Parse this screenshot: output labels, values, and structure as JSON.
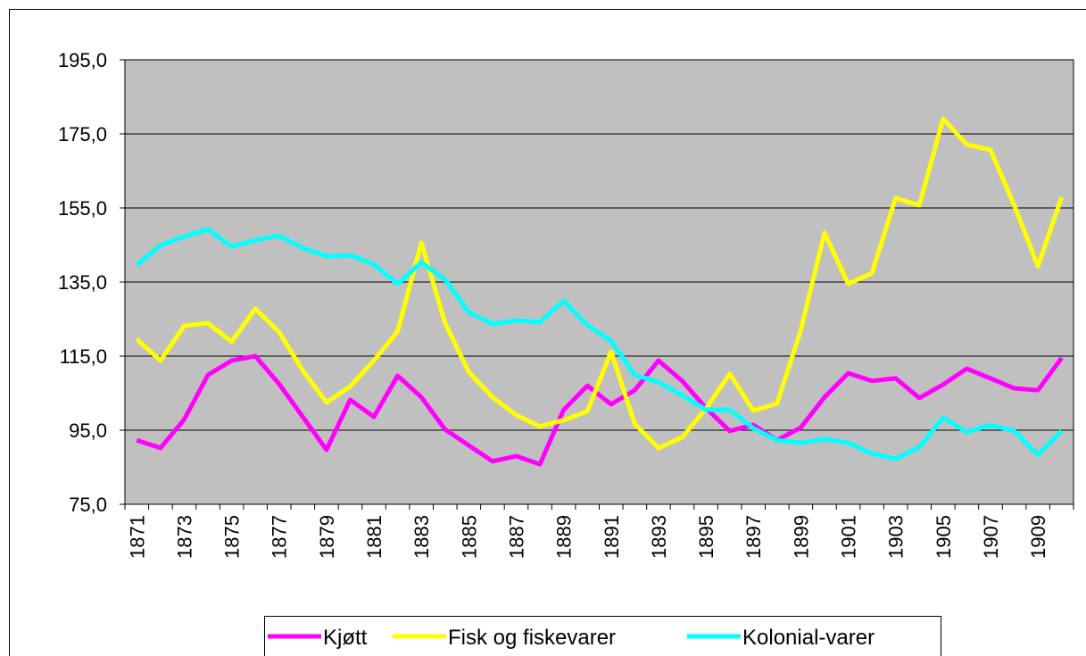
{
  "chart_data": {
    "type": "line",
    "categories": [
      1871,
      null,
      1873,
      null,
      1875,
      null,
      1877,
      null,
      1879,
      null,
      1881,
      null,
      1883,
      null,
      1885,
      null,
      1887,
      null,
      1889,
      null,
      1891,
      null,
      1893,
      null,
      1895,
      null,
      1897,
      null,
      1899,
      null,
      1901,
      null,
      1903,
      null,
      1905,
      null,
      1907,
      null,
      1909,
      null
    ],
    "series": [
      {
        "name": "Kjøtt",
        "color": "#ff00ff",
        "values": [
          92.3,
          90.2,
          97.9,
          109.9,
          113.8,
          115.0,
          107.5,
          98.6,
          89.7,
          103.2,
          98.6,
          109.7,
          103.9,
          95.2,
          90.9,
          86.6,
          88.0,
          85.8,
          100.5,
          107.0,
          102.0,
          105.8,
          113.8,
          108.3,
          101.0,
          94.8,
          96.4,
          92.3,
          95.7,
          103.9,
          110.4,
          108.3,
          109.0,
          103.7,
          107.3,
          111.6,
          109.0,
          106.3,
          105.8,
          114.5
        ]
      },
      {
        "name": "Fisk og fiskevarer",
        "color": "#ffff00",
        "values": [
          119.6,
          113.8,
          123.2,
          123.9,
          118.9,
          127.8,
          121.5,
          111.1,
          102.5,
          106.8,
          113.8,
          121.7,
          145.6,
          123.9,
          110.7,
          103.9,
          99.1,
          96.0,
          97.7,
          100.1,
          116.2,
          96.7,
          90.2,
          93.1,
          100.8,
          110.2,
          100.3,
          102.2,
          122.0,
          148.3,
          134.5,
          137.4,
          157.7,
          155.7,
          179.1,
          172.1,
          170.7,
          155.7,
          139.3,
          157.9
        ]
      },
      {
        "name": "Kolonial-varer",
        "color": "#00ffff",
        "values": [
          139.6,
          144.9,
          147.3,
          149.2,
          144.6,
          146.3,
          147.5,
          144.2,
          142.0,
          142.2,
          139.8,
          134.5,
          140.3,
          135.7,
          126.8,
          123.7,
          124.6,
          124.2,
          129.9,
          123.4,
          119.1,
          109.9,
          108.0,
          104.4,
          100.5,
          100.5,
          95.5,
          92.3,
          91.6,
          92.6,
          91.6,
          88.7,
          87.3,
          90.4,
          98.4,
          94.5,
          96.4,
          94.8,
          88.3,
          94.8
        ]
      }
    ],
    "ylim": [
      75,
      195
    ],
    "yticks": [
      {
        "value": 75,
        "label": "75,0"
      },
      {
        "value": 95,
        "label": "95,0"
      },
      {
        "value": 115,
        "label": "115,0"
      },
      {
        "value": 135,
        "label": "135,0"
      },
      {
        "value": 155,
        "label": "155,0"
      },
      {
        "value": 175,
        "label": "175,0"
      },
      {
        "value": 195,
        "label": "195,0"
      }
    ],
    "grid": true
  }
}
